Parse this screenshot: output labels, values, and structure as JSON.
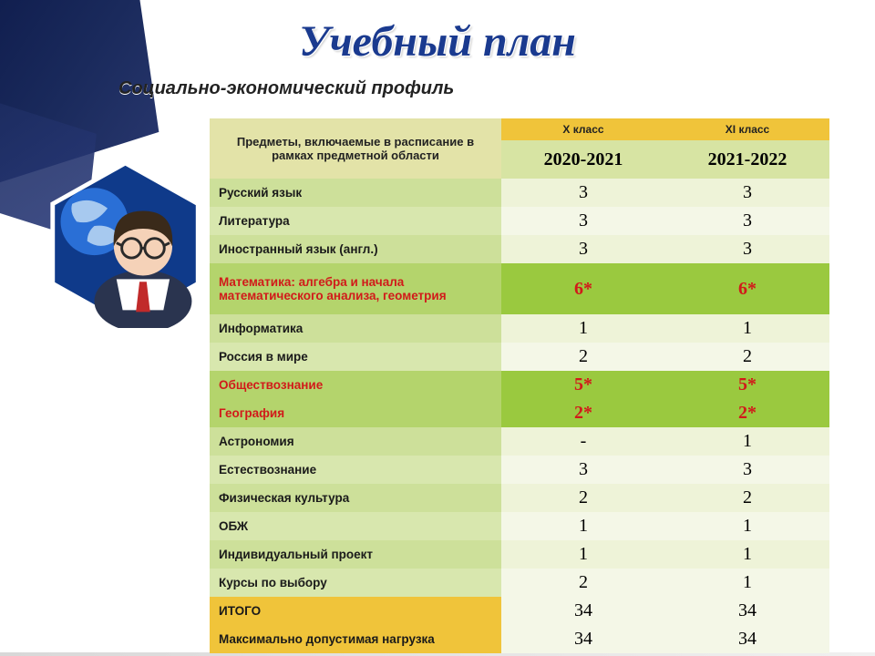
{
  "title": "Учебный план",
  "subtitle": "Социально-экономический  профиль",
  "table": {
    "corner_header": "Предметы, включаемые в расписание в рамках предметной области",
    "col_headers_top": [
      "X класс",
      "XI класс"
    ],
    "col_headers_years": [
      "2020-2021",
      "2021-2022"
    ],
    "rows": [
      {
        "label": "Русский язык",
        "v": [
          "3",
          "3"
        ],
        "hi": false,
        "red": false,
        "stripe": "a"
      },
      {
        "label": "Литература",
        "v": [
          "3",
          "3"
        ],
        "hi": false,
        "red": false,
        "stripe": "b"
      },
      {
        "label": "Иностранный язык (англ.)",
        "v": [
          "3",
          "3"
        ],
        "hi": false,
        "red": false,
        "stripe": "a"
      },
      {
        "label": "Математика: алгебра и начала математического анализа, геометрия",
        "v": [
          "6*",
          "6*"
        ],
        "hi": true,
        "red": true,
        "stripe": "b",
        "tall": true
      },
      {
        "label": "Информатика",
        "v": [
          "1",
          "1"
        ],
        "hi": false,
        "red": false,
        "stripe": "a"
      },
      {
        "label": "Россия в мире",
        "v": [
          "2",
          "2"
        ],
        "hi": false,
        "red": false,
        "stripe": "b"
      },
      {
        "label": "Обществознание",
        "v": [
          "5*",
          "5*"
        ],
        "hi": true,
        "red": true,
        "stripe": "a"
      },
      {
        "label": "География",
        "v": [
          "2*",
          "2*"
        ],
        "hi": true,
        "red": true,
        "stripe": "b"
      },
      {
        "label": "Астрономия",
        "v": [
          "-",
          "1"
        ],
        "hi": false,
        "red": false,
        "stripe": "a"
      },
      {
        "label": "Естествознание",
        "v": [
          "3",
          "3"
        ],
        "hi": false,
        "red": false,
        "stripe": "b"
      },
      {
        "label": "Физическая культура",
        "v": [
          "2",
          "2"
        ],
        "hi": false,
        "red": false,
        "stripe": "a"
      },
      {
        "label": "ОБЖ",
        "v": [
          "1",
          "1"
        ],
        "hi": false,
        "red": false,
        "stripe": "b"
      },
      {
        "label": "Индивидуальный проект",
        "v": [
          "1",
          "1"
        ],
        "hi": false,
        "red": false,
        "stripe": "a"
      },
      {
        "label": "Курсы по выбору",
        "v": [
          "2",
          "1"
        ],
        "hi": false,
        "red": false,
        "stripe": "b"
      }
    ],
    "summary": [
      {
        "label": "ИТОГО",
        "v": [
          "34",
          "34"
        ]
      },
      {
        "label": "Максимально допустимая нагрузка",
        "v": [
          "34",
          "34"
        ]
      }
    ]
  },
  "colors": {
    "title": "#1a3a8f",
    "header_gold": "#f0c43a",
    "header_olive": "#e3e3a8",
    "year_bg": "#d7e4a3",
    "stripe_a_label": "#cde09a",
    "stripe_a_val": "#eef3d8",
    "stripe_b_label": "#d8e7ae",
    "stripe_b_val": "#f4f7e7",
    "hi_label": "#b4d46c",
    "hi_val": "#9ac93f",
    "red": "#d11a1a",
    "corner_navy": "#1a2a5c"
  },
  "avatar": {
    "hex_fill": "#0f3a8a",
    "hex_stroke": "#ffffff",
    "globe_fill": "#2a6fd6",
    "globe_land": "#a7c9ef",
    "skin": "#f5d2b8",
    "hair": "#3a2a1a",
    "glasses": "#2a2a2a",
    "suit": "#2a344f",
    "shirt": "#ffffff",
    "tie": "#c12a2a"
  }
}
